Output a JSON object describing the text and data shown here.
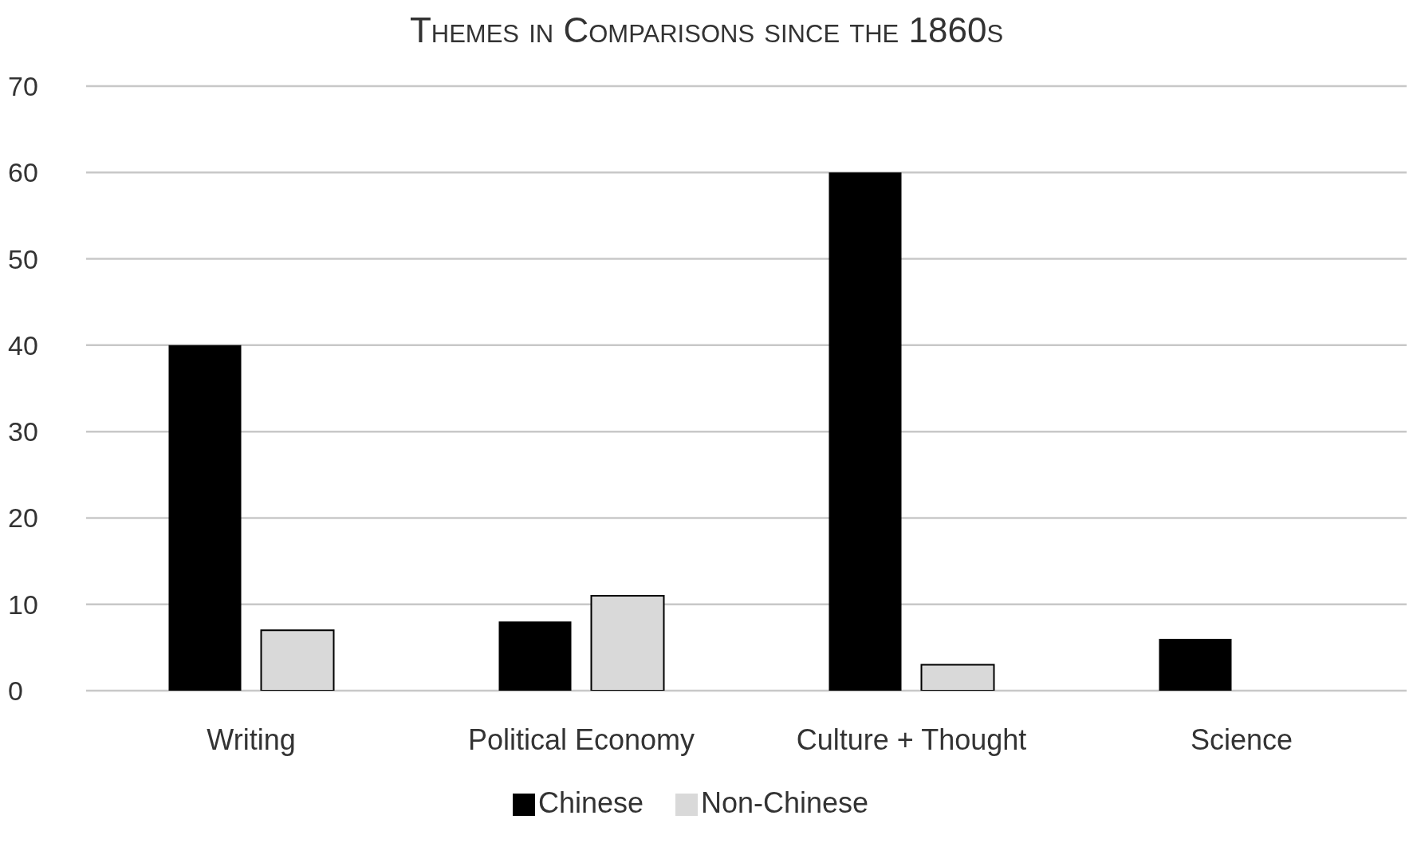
{
  "chart_data": {
    "type": "bar",
    "title": "Themes in Comparisons since the 1860s",
    "categories": [
      "Writing",
      "Political Economy",
      "Culture + Thought",
      "Science"
    ],
    "series": [
      {
        "name": "Chinese",
        "color": "#000000",
        "values": [
          40,
          8,
          60,
          6
        ]
      },
      {
        "name": "Non-Chinese",
        "color": "#d9d9d9",
        "values": [
          7,
          11,
          3,
          0
        ]
      }
    ],
    "ylim": [
      0,
      70
    ],
    "yticks": [
      0,
      10,
      20,
      30,
      40,
      50,
      60,
      70
    ],
    "grid": "y",
    "legend": "bottom"
  }
}
